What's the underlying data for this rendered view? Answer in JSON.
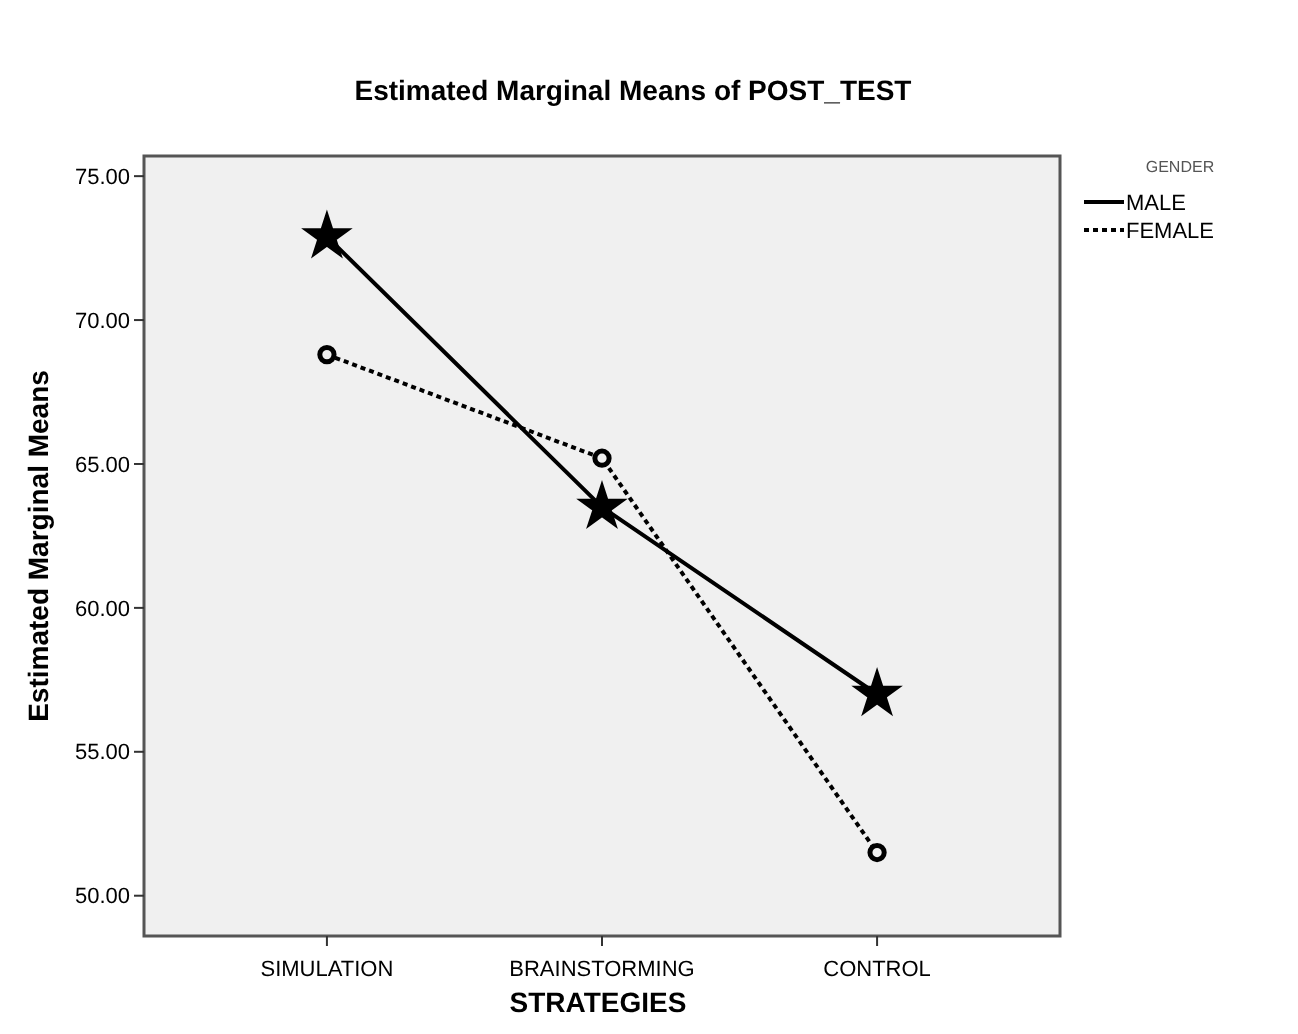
{
  "chart_data": {
    "type": "line",
    "title": "Estimated Marginal Means of POST_TEST",
    "xlabel": "STRATEGIES",
    "ylabel": "Estimated Marginal Means",
    "legend_title": "GENDER",
    "categories": [
      "SIMULATION",
      "BRAINSTORMING",
      "CONTROL"
    ],
    "series": [
      {
        "name": "MALE",
        "color": "#000000",
        "values": [
          72.9,
          63.5,
          57.0
        ],
        "marker": "star",
        "line_style": "solid"
      },
      {
        "name": "FEMALE",
        "color": "#000000",
        "values": [
          68.8,
          65.2,
          51.5
        ],
        "marker": "circle",
        "line_style": "dotted"
      }
    ],
    "ylim": [
      48.6,
      75.7
    ],
    "yticks": [
      {
        "value": 50,
        "label": "50.00"
      },
      {
        "value": 55,
        "label": "55.00"
      },
      {
        "value": 60,
        "label": "60.00"
      },
      {
        "value": 65,
        "label": "65.00"
      },
      {
        "value": 70,
        "label": "70.00"
      },
      {
        "value": 75,
        "label": "75.00"
      }
    ],
    "grid": false,
    "legend": "top right"
  }
}
